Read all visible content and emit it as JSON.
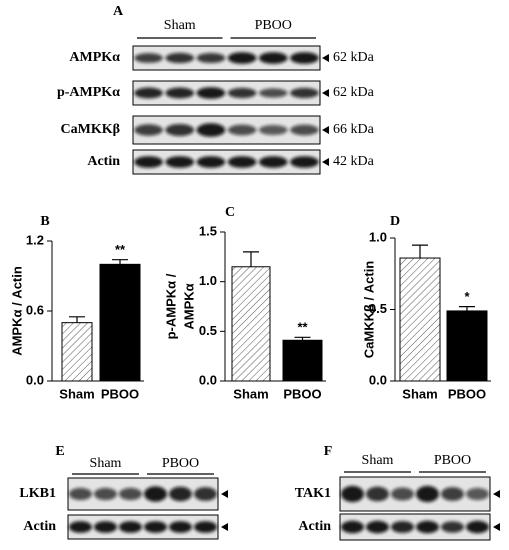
{
  "blots": [
    {
      "panel": "A",
      "groups": [
        "Sham",
        "PBOO"
      ],
      "rows": [
        {
          "label": "AMPKα",
          "size": "62 kDa"
        },
        {
          "label": "p-AMPKα",
          "size": "62 kDa"
        },
        {
          "label": "CaMKKβ",
          "size": "66 kDa"
        },
        {
          "label": "Actin",
          "size": "42 kDa"
        }
      ]
    },
    {
      "panel": "E",
      "groups": [
        "Sham",
        "PBOO"
      ],
      "rows": [
        {
          "label": "LKB1"
        },
        {
          "label": "Actin"
        }
      ]
    },
    {
      "panel": "F",
      "groups": [
        "Sham",
        "PBOO"
      ],
      "rows": [
        {
          "label": "TAK1"
        },
        {
          "label": "Actin"
        }
      ]
    }
  ],
  "chart_data": [
    {
      "type": "bar",
      "panel": "B",
      "ylabel": "AMPKα / Actin",
      "categories": [
        "Sham",
        "PBOO"
      ],
      "values": [
        0.5,
        1.0
      ],
      "errors": [
        0.05,
        0.04
      ],
      "significance": [
        null,
        "**"
      ],
      "colors": [
        "#ffffff",
        "#000000"
      ],
      "hatch": [
        true,
        false
      ],
      "ylim": [
        0,
        1.2
      ],
      "yticks": [
        {
          "value": 0,
          "label": "0.0"
        },
        {
          "value": 0.6,
          "label": "0.6"
        },
        {
          "value": 1.2,
          "label": "1.2"
        }
      ]
    },
    {
      "type": "bar",
      "panel": "C",
      "ylabel": [
        "p-AMPKα /",
        "AMPKα"
      ],
      "categories": [
        "Sham",
        "PBOO"
      ],
      "values": [
        1.15,
        0.41
      ],
      "errors": [
        0.15,
        0.03
      ],
      "significance": [
        null,
        "**"
      ],
      "colors": [
        "#ffffff",
        "#000000"
      ],
      "hatch": [
        true,
        false
      ],
      "ylim": [
        0,
        1.5
      ],
      "yticks": [
        {
          "value": 0,
          "label": "0.0"
        },
        {
          "value": 0.5,
          "label": "0.5"
        },
        {
          "value": 1,
          "label": "1.0"
        },
        {
          "value": 1.5,
          "label": "1.5"
        }
      ]
    },
    {
      "type": "bar",
      "panel": "D",
      "ylabel": "CaMKKβ / Actin",
      "categories": [
        "Sham",
        "PBOO"
      ],
      "values": [
        0.86,
        0.49
      ],
      "errors": [
        0.09,
        0.03
      ],
      "significance": [
        null,
        "*"
      ],
      "colors": [
        "#ffffff",
        "#000000"
      ],
      "hatch": [
        true,
        false
      ],
      "ylim": [
        0,
        1.0
      ],
      "yticks": [
        {
          "value": 0,
          "label": "0.0"
        },
        {
          "value": 0.5,
          "label": "0.5"
        },
        {
          "value": 1,
          "label": "1.0"
        }
      ]
    }
  ]
}
